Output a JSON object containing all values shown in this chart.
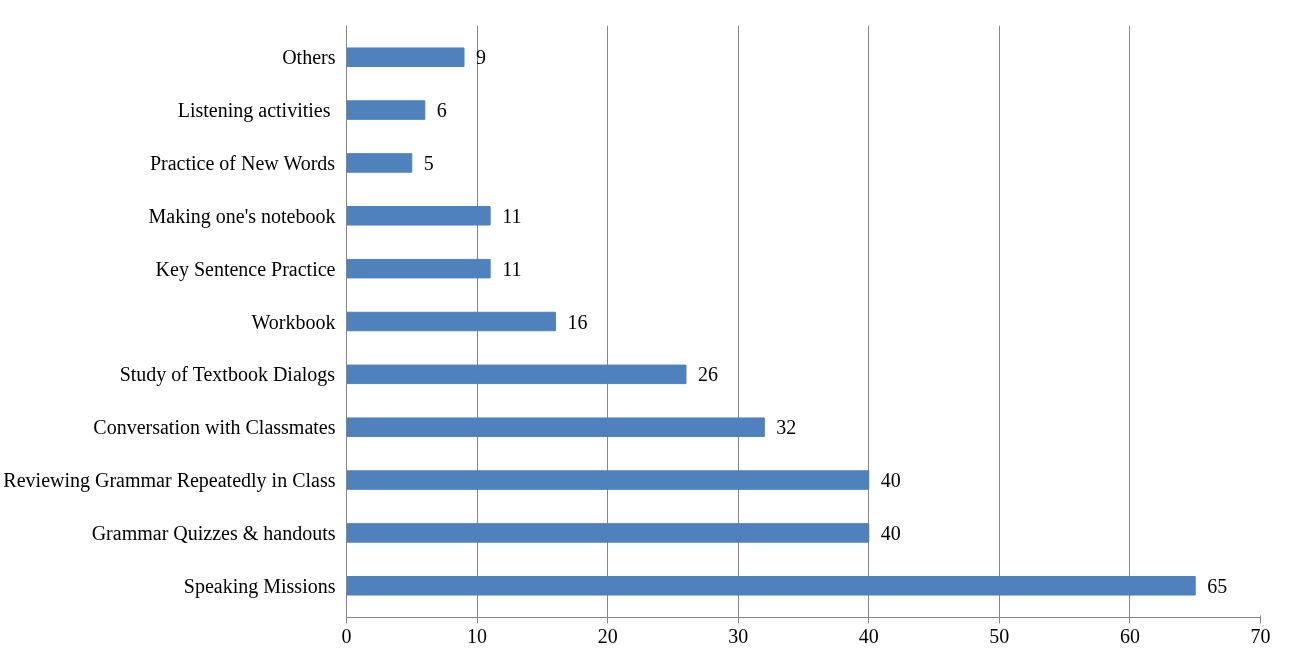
{
  "chart_data": {
    "type": "bar",
    "orientation": "horizontal",
    "categories": [
      "Others",
      "Listening  activities",
      "Practice of New Words",
      "Making one's notebook",
      "Key Sentence Practice",
      "Workbook",
      "Study of Textbook Dialogs",
      "Conversation with Classmates",
      "Reviewing Grammar Repeatedly in Class",
      "Grammar Quizzes & handouts",
      "Speaking Missions"
    ],
    "values": [
      9,
      6,
      5,
      11,
      11,
      16,
      26,
      32,
      40,
      40,
      65
    ],
    "color": "#4f81bd",
    "xlim": [
      0,
      70
    ],
    "xticks": [
      0,
      10,
      20,
      30,
      40,
      50,
      60,
      70
    ],
    "grid": "x",
    "data_labels": true
  }
}
